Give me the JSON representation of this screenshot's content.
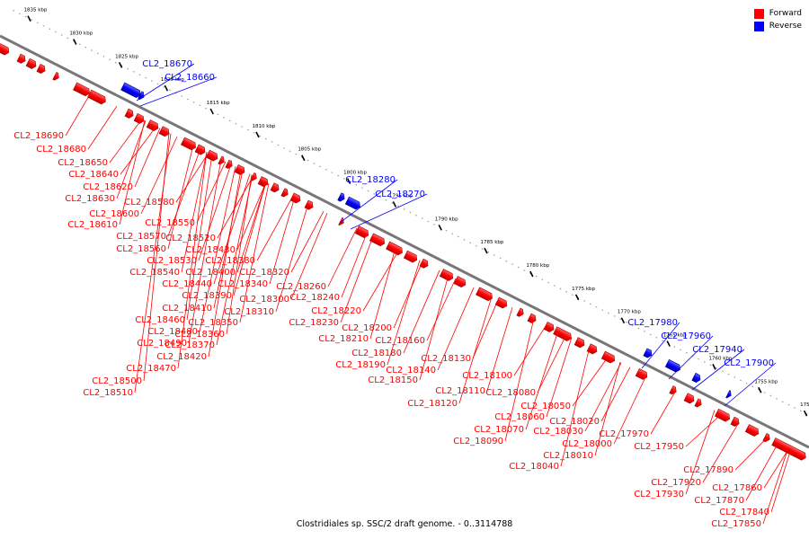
{
  "legend": {
    "forward_label": "Forward",
    "forward_color": "#ff0000",
    "reverse_label": "Reverse",
    "reverse_color": "#0000ff"
  },
  "footer": "Clostridiales sp. SSC/2 draft genome. - 0..3114788",
  "axis_ticks": [
    "1835 kbp",
    "1830 kbp",
    "1825 kbp",
    "1820 kbp",
    "1815 kbp",
    "1810 kbp",
    "1805 kbp",
    "1800 kbp",
    "1795 kbp",
    "1790 kbp",
    "1785 kbp",
    "1780 kbp",
    "1775 kbp",
    "1770 kbp",
    "1765 kbp",
    "1760 kbp",
    "1755 kbp",
    "1750 kbp"
  ],
  "forward_labels": [
    "CL2_18690",
    "CL2_18680",
    "CL2_18650",
    "CL2_18640",
    "CL2_18620",
    "CL2_18630",
    "CL2_18580",
    "CL2_18600",
    "CL2_18610",
    "CL2_18550",
    "CL2_18570",
    "CL2_18520",
    "CL2_18560",
    "CL2_18430",
    "CL2_18530",
    "CL2_18380",
    "CL2_18540",
    "CL2_18400",
    "CL2_18320",
    "CL2_18440",
    "CL2_18340",
    "CL2_18260",
    "CL2_18390",
    "CL2_18300",
    "CL2_18240",
    "CL2_18410",
    "CL2_18310",
    "CL2_18220",
    "CL2_18460",
    "CL2_18350",
    "CL2_18230",
    "CL2_18480",
    "CL2_18360",
    "CL2_18200",
    "CL2_18490",
    "CL2_18370",
    "CL2_18210",
    "CL2_18160",
    "CL2_18420",
    "CL2_18180",
    "CL2_18130",
    "CL2_18470",
    "CL2_18190",
    "CL2_18140",
    "CL2_18500",
    "CL2_18150",
    "CL2_18100",
    "CL2_18510",
    "CL2_18110",
    "CL2_18080",
    "CL2_18120",
    "CL2_18050",
    "CL2_18060",
    "CL2_18020",
    "CL2_18070",
    "CL2_18030",
    "CL2_17970",
    "CL2_18090",
    "CL2_18000",
    "CL2_17950",
    "CL2_18010",
    "CL2_18040",
    "CL2_17890",
    "CL2_17920",
    "CL2_17860",
    "CL2_17930",
    "CL2_17870",
    "CL2_17840",
    "CL2_17850"
  ],
  "reverse_labels": [
    "CL2_18670",
    "CL2_18660",
    "CL2_18280",
    "CL2_18270",
    "CL2_17980",
    "CL2_17960",
    "CL2_17940",
    "CL2_17900"
  ]
}
